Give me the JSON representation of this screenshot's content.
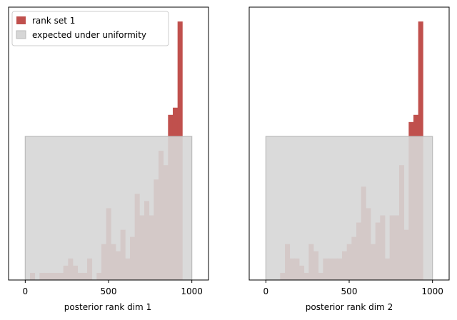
{
  "colors": {
    "bar": "#c0504d",
    "uniform": "#d6d6d6",
    "uniform_edge": "#bbbbbb",
    "axis": "#000000"
  },
  "legend": {
    "location": "upper-left of left panel",
    "entries": [
      "rank set 1",
      "expected under uniformity"
    ]
  },
  "chart_data": [
    {
      "type": "bar",
      "xlabel": "posterior rank dim 1",
      "ylabel": "",
      "xlim": [
        -100,
        1100
      ],
      "ylim": [
        0,
        38
      ],
      "xticks": [
        0,
        500,
        1000
      ],
      "bin_width": 28.57,
      "bin_start": 0,
      "values": [
        0,
        1,
        0,
        1,
        1,
        1,
        1,
        1,
        2,
        3,
        2,
        1,
        1,
        3,
        0,
        1,
        5,
        10,
        5,
        4,
        7,
        3,
        6,
        12,
        9,
        11,
        9,
        14,
        18,
        16,
        23,
        24,
        36
      ],
      "uniform_band": {
        "x": [
          0,
          1000
        ],
        "height": 20
      },
      "series": [
        {
          "name": "rank set 1"
        },
        {
          "name": "expected under uniformity"
        }
      ]
    },
    {
      "type": "bar",
      "xlabel": "posterior rank dim 2",
      "ylabel": "",
      "xlim": [
        -100,
        1100
      ],
      "ylim": [
        0,
        38
      ],
      "xticks": [
        0,
        500,
        1000
      ],
      "bin_width": 28.57,
      "bin_start": 0,
      "values": [
        0,
        0,
        0,
        1,
        5,
        3,
        3,
        2,
        1,
        5,
        4,
        1,
        3,
        3,
        3,
        3,
        4,
        5,
        6,
        8,
        13,
        10,
        5,
        8,
        9,
        3,
        9,
        9,
        16,
        7,
        22,
        23,
        36
      ],
      "uniform_band": {
        "x": [
          0,
          1000
        ],
        "height": 20
      },
      "series": [
        {
          "name": "rank set 1"
        },
        {
          "name": "expected under uniformity"
        }
      ]
    }
  ]
}
